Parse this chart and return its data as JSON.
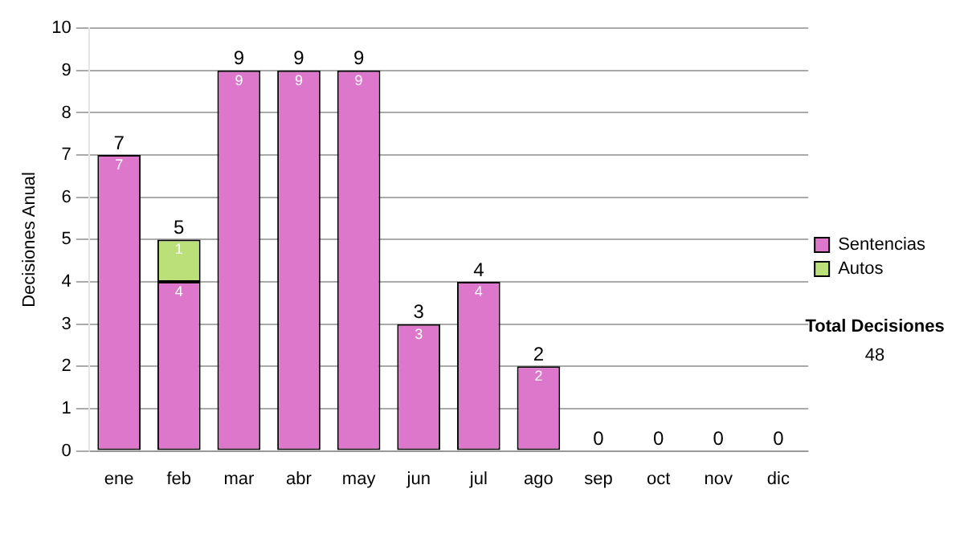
{
  "chart_data": {
    "type": "bar",
    "stacked": true,
    "ylabel": "Decisiones Anual",
    "categories": [
      "ene",
      "feb",
      "mar",
      "abr",
      "may",
      "jun",
      "jul",
      "ago",
      "sep",
      "oct",
      "nov",
      "dic"
    ],
    "series": [
      {
        "name": "Sentencias",
        "color": "#dd77cc",
        "values": [
          7,
          4,
          9,
          9,
          9,
          3,
          4,
          2,
          0,
          0,
          0,
          0
        ],
        "value_labels": [
          "7",
          "4",
          "9",
          "9",
          "9",
          "3",
          "4",
          "2",
          null,
          null,
          null,
          null
        ]
      },
      {
        "name": "Autos",
        "color": "#bbe07a",
        "values": [
          0,
          1,
          0,
          0,
          0,
          0,
          0,
          0,
          0,
          0,
          0,
          0
        ],
        "value_labels": [
          null,
          "1",
          null,
          null,
          null,
          null,
          null,
          null,
          null,
          null,
          null,
          null
        ]
      }
    ],
    "totals": [
      "7",
      "5",
      "9",
      "9",
      "9",
      "3",
      "4",
      "2",
      "0",
      "0",
      "0",
      "0"
    ],
    "ylim": [
      0,
      10
    ],
    "yticks": [
      0,
      1,
      2,
      3,
      4,
      5,
      6,
      7,
      8,
      9,
      10
    ],
    "grid": "y",
    "legend": "right",
    "annotations": [
      "Total Decisiones",
      "48"
    ]
  }
}
